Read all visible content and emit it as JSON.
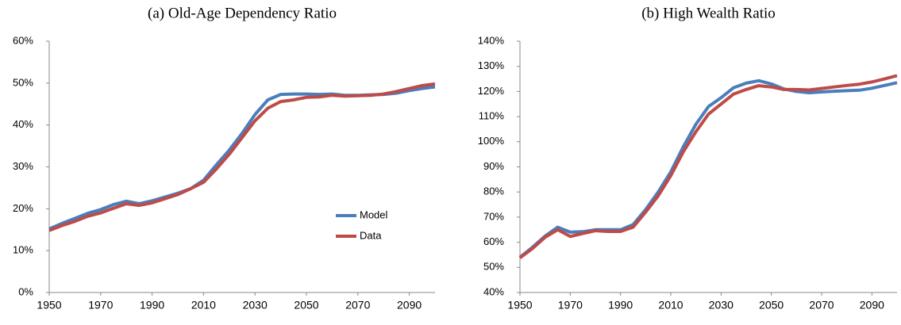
{
  "chart_data": [
    {
      "type": "line",
      "title": "(a)  Old-Age Dependency Ratio",
      "x": [
        1950,
        1955,
        1960,
        1965,
        1970,
        1975,
        1980,
        1985,
        1990,
        1995,
        2000,
        2005,
        2010,
        2015,
        2020,
        2025,
        2030,
        2035,
        2040,
        2045,
        2050,
        2055,
        2060,
        2065,
        2070,
        2075,
        2080,
        2085,
        2090,
        2095,
        2100
      ],
      "series": [
        {
          "name": "Model",
          "color": "#4a7ebb",
          "values": [
            15.2,
            16.5,
            17.7,
            18.9,
            19.8,
            21.0,
            21.8,
            21.2,
            21.9,
            22.8,
            23.7,
            24.8,
            26.8,
            30.5,
            34.0,
            38.0,
            42.5,
            46.0,
            47.3,
            47.4,
            47.4,
            47.3,
            47.4,
            47.1,
            47.1,
            47.2,
            47.3,
            47.6,
            48.2,
            48.7,
            49.1
          ]
        },
        {
          "name": "Data",
          "color": "#be4b48",
          "values": [
            14.8,
            16.0,
            17.0,
            18.2,
            19.0,
            20.1,
            21.2,
            20.8,
            21.4,
            22.4,
            23.4,
            24.8,
            26.3,
            29.5,
            33.0,
            37.0,
            41.0,
            44.0,
            45.6,
            46.0,
            46.6,
            46.7,
            47.1,
            46.9,
            47.0,
            47.1,
            47.4,
            48.0,
            48.7,
            49.4,
            49.8
          ]
        }
      ],
      "xlim": [
        1950,
        2100
      ],
      "xticks": [
        1950,
        1970,
        1990,
        2010,
        2030,
        2050,
        2070,
        2090
      ],
      "ylim": [
        0,
        60
      ],
      "yticks": [
        {
          "value": 0,
          "label": "0%"
        },
        {
          "value": 10,
          "label": "10%"
        },
        {
          "value": 20,
          "label": "20%"
        },
        {
          "value": 30,
          "label": "30%"
        },
        {
          "value": 40,
          "label": "40%"
        },
        {
          "value": 50,
          "label": "50%"
        },
        {
          "value": 60,
          "label": "60%"
        }
      ],
      "legend": "lower right"
    },
    {
      "type": "line",
      "title": "(b)  High Wealth Ratio",
      "x": [
        1950,
        1955,
        1960,
        1965,
        1970,
        1975,
        1980,
        1985,
        1990,
        1995,
        2000,
        2005,
        2010,
        2015,
        2020,
        2025,
        2030,
        2035,
        2040,
        2045,
        2050,
        2055,
        2060,
        2065,
        2070,
        2075,
        2080,
        2085,
        2090,
        2095,
        2100
      ],
      "series": [
        {
          "name": "Model",
          "color": "#4a7ebb",
          "values": [
            54,
            58,
            62.5,
            66,
            64,
            64.2,
            65,
            65,
            65,
            67,
            73,
            80,
            88,
            98,
            107,
            114,
            117.5,
            121.5,
            123.3,
            124.3,
            123,
            121,
            120,
            119.5,
            119.8,
            120.1,
            120.3,
            120.5,
            121.3,
            122.4,
            123.5
          ]
        },
        {
          "name": "Data",
          "color": "#be4b48",
          "values": [
            53.8,
            57.5,
            62,
            65,
            62.3,
            63.5,
            64.6,
            64.3,
            64.3,
            66,
            72,
            78.5,
            86.5,
            96,
            104,
            111,
            115,
            119,
            120.8,
            122.3,
            121.8,
            120.8,
            120.8,
            120.6,
            121.2,
            121.8,
            122.4,
            122.9,
            123.8,
            125,
            126.3
          ]
        }
      ],
      "xlim": [
        1950,
        2100
      ],
      "xticks": [
        1950,
        1970,
        1990,
        2010,
        2030,
        2050,
        2070,
        2090
      ],
      "ylim": [
        40,
        140
      ],
      "yticks": [
        {
          "value": 40,
          "label": "40%"
        },
        {
          "value": 50,
          "label": "50%"
        },
        {
          "value": 60,
          "label": "60%"
        },
        {
          "value": 70,
          "label": "70%"
        },
        {
          "value": 80,
          "label": "80%"
        },
        {
          "value": 90,
          "label": "90%"
        },
        {
          "value": 100,
          "label": "100%"
        },
        {
          "value": 110,
          "label": "110%"
        },
        {
          "value": 120,
          "label": "120%"
        },
        {
          "value": 130,
          "label": "130%"
        },
        {
          "value": 140,
          "label": "140%"
        }
      ]
    }
  ]
}
